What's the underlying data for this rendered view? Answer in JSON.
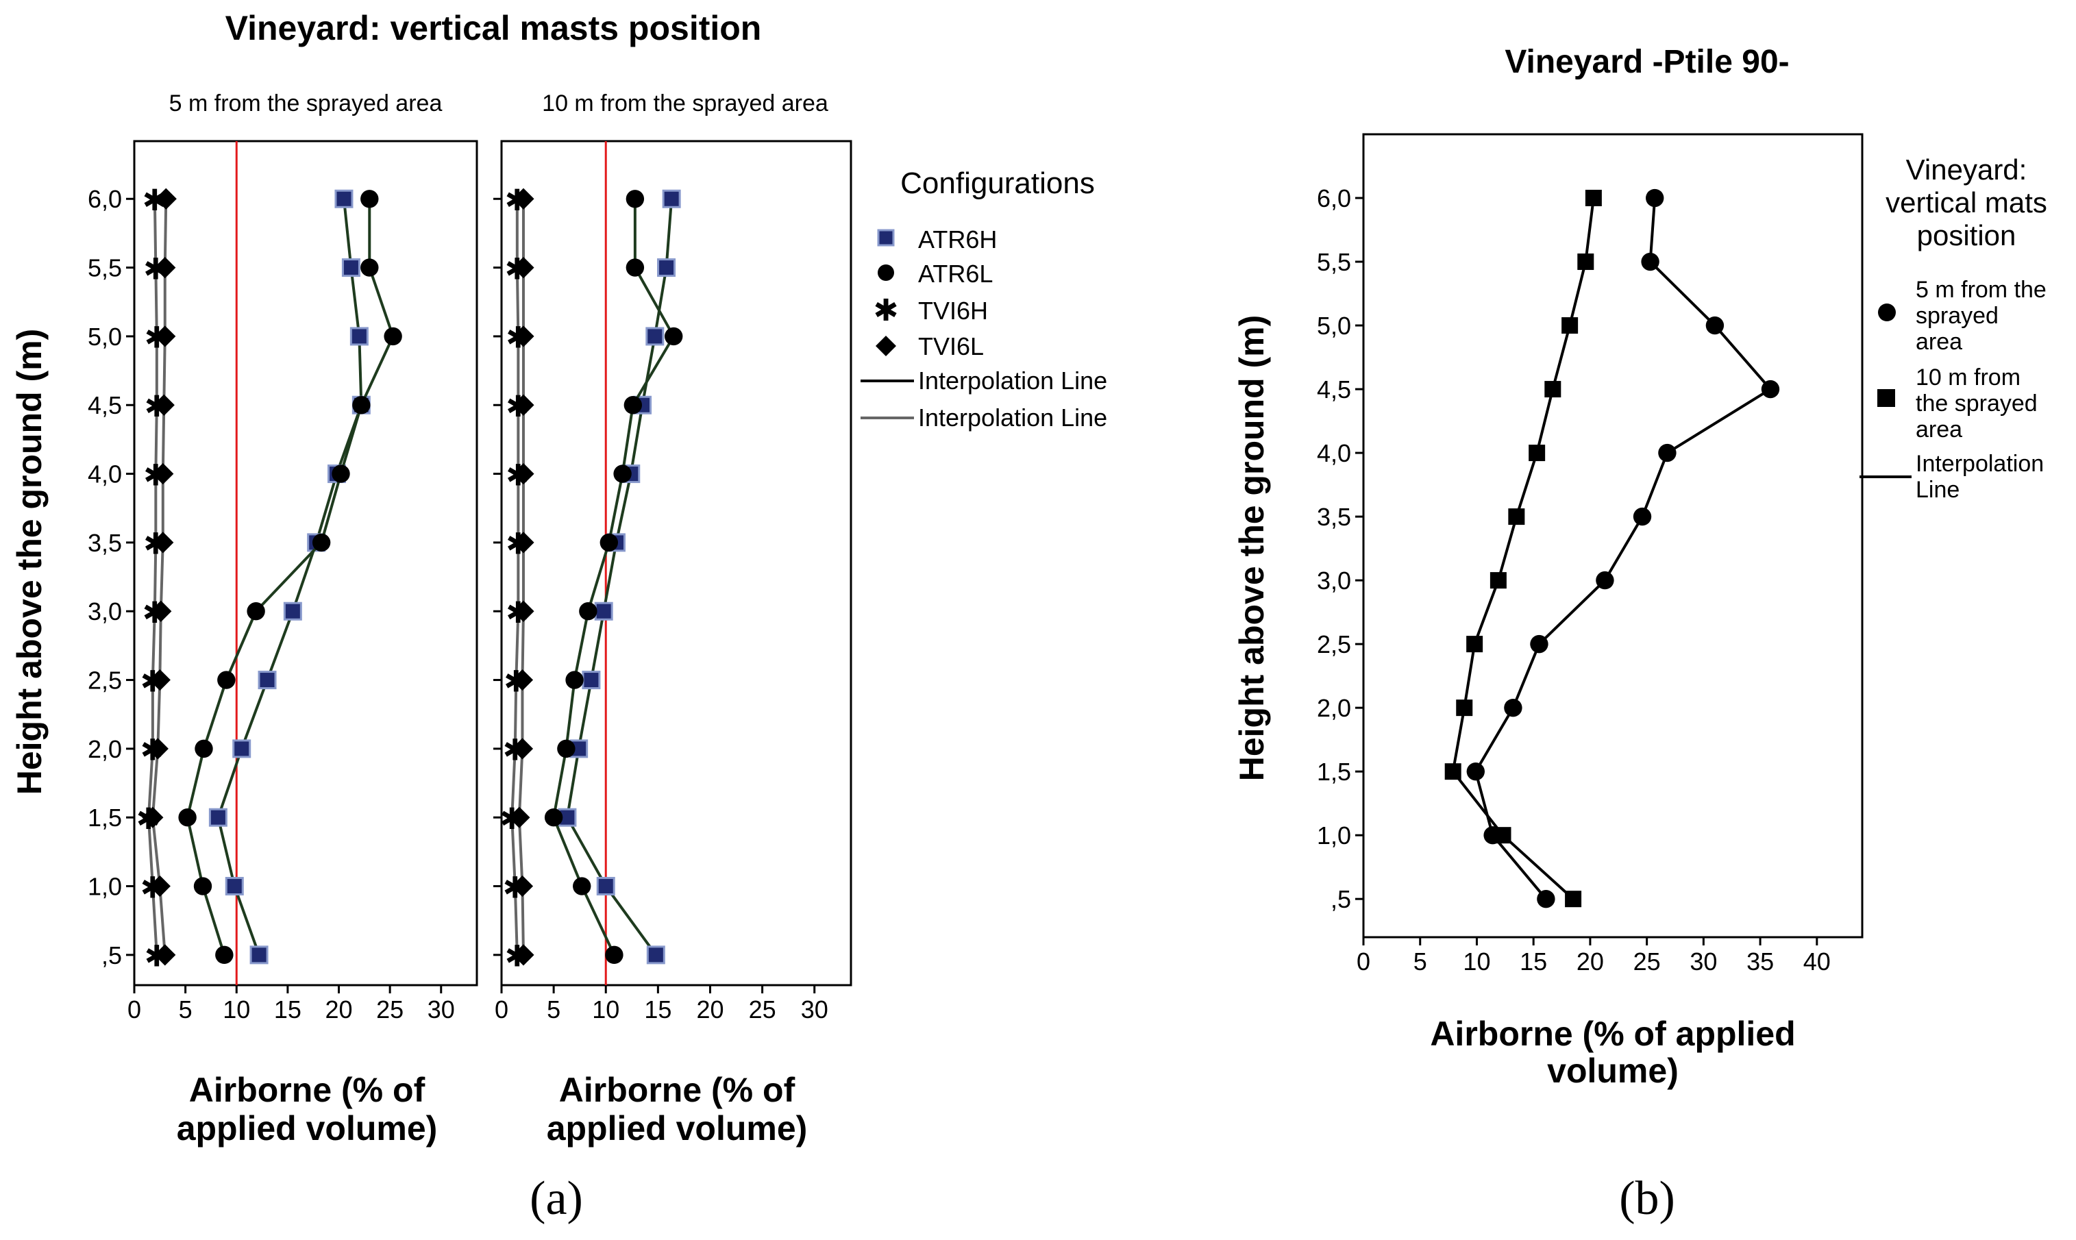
{
  "figure": {
    "panel_a_label": "(a)",
    "panel_b_label": "(b)"
  },
  "chart_data": [
    {
      "id": "a",
      "type": "line",
      "title": "Vineyard: vertical masts position",
      "ylabel": "Height above the ground (m)",
      "ytick_labels": [
        ",5",
        "1,0",
        "1,5",
        "2,0",
        "2,5",
        "3,0",
        "3,5",
        "4,0",
        "4,5",
        "5,0",
        "5,5",
        "6,0"
      ],
      "xticks": [
        0,
        5,
        10,
        15,
        20,
        25,
        30
      ],
      "xlim": [
        0,
        33.5
      ],
      "ylim": [
        0.28,
        6.42
      ],
      "grid": false,
      "legend_title": "Configurations",
      "legend_position": "right",
      "legend": [
        "ATR6H",
        "ATR6L",
        "TVI6H",
        "TVI6L",
        "Interpolation Line",
        "Interpolation Line"
      ],
      "reference_line": {
        "x": 10,
        "color": "#e31a1c"
      },
      "colors": {
        "ATR6H_fill": "#1f2a70",
        "ATR6H_edge": "#8899cc",
        "marker": "#000000",
        "line_dark": "#1e3b1e",
        "line_gray": "#666666"
      },
      "facets": [
        {
          "id": "a1",
          "label": "5 m from the sprayed area",
          "xlabel": [
            "Airborne (% of",
            "applied volume)"
          ],
          "y": [
            0.5,
            1.0,
            1.5,
            2.0,
            2.5,
            3.0,
            3.5,
            4.0,
            4.5,
            5.0,
            5.5,
            6.0
          ],
          "series": [
            {
              "name": "ATR6H",
              "marker": "square",
              "values": [
                12.2,
                9.8,
                8.2,
                10.5,
                13.0,
                15.5,
                17.8,
                19.8,
                22.2,
                22.0,
                21.2,
                20.5
              ]
            },
            {
              "name": "ATR6L",
              "marker": "circle",
              "values": [
                8.8,
                6.7,
                5.2,
                6.8,
                9.0,
                11.9,
                18.3,
                20.2,
                22.2,
                25.3,
                23.0,
                23.0
              ]
            },
            {
              "name": "TVI6H",
              "marker": "star",
              "values": [
                2.2,
                1.8,
                1.4,
                1.8,
                1.8,
                2.0,
                2.1,
                2.1,
                2.2,
                2.2,
                2.1,
                2.0
              ]
            },
            {
              "name": "TVI6L",
              "marker": "diamond",
              "values": [
                3.0,
                2.5,
                1.8,
                2.3,
                2.5,
                2.6,
                2.8,
                2.8,
                2.9,
                3.0,
                3.0,
                3.1
              ]
            }
          ]
        },
        {
          "id": "a2",
          "label": "10 m from the sprayed area",
          "xlabel": [
            "Airborne (% of",
            "applied volume)"
          ],
          "y": [
            0.5,
            1.0,
            1.5,
            2.0,
            2.5,
            3.0,
            3.5,
            4.0,
            4.5,
            5.0,
            5.5,
            6.0
          ],
          "series": [
            {
              "name": "ATR6H",
              "marker": "square",
              "values": [
                14.8,
                10.0,
                6.3,
                7.4,
                8.6,
                9.8,
                11.0,
                12.4,
                13.5,
                14.7,
                15.8,
                16.3
              ]
            },
            {
              "name": "ATR6L",
              "marker": "circle",
              "values": [
                10.8,
                7.7,
                5.0,
                6.2,
                7.0,
                8.3,
                10.3,
                11.6,
                12.6,
                16.5,
                12.8,
                12.8
              ]
            },
            {
              "name": "TVI6H",
              "marker": "star",
              "values": [
                1.5,
                1.3,
                1.0,
                1.3,
                1.4,
                1.6,
                1.6,
                1.6,
                1.6,
                1.6,
                1.5,
                1.5
              ]
            },
            {
              "name": "TVI6L",
              "marker": "diamond",
              "values": [
                2.1,
                2.0,
                1.7,
                2.0,
                2.0,
                2.1,
                2.1,
                2.1,
                2.1,
                2.1,
                2.1,
                2.1
              ]
            }
          ]
        }
      ]
    },
    {
      "id": "b",
      "type": "line",
      "title": "Vineyard -Ptile 90-",
      "xlabel": [
        "Airborne (% of applied",
        "volume)"
      ],
      "ylabel": "Height above the ground (m)",
      "ytick_labels": [
        ",5",
        "1,0",
        "1,5",
        "2,0",
        "2,5",
        "3,0",
        "3,5",
        "4,0",
        "4,5",
        "5,0",
        "5,5",
        "6,0"
      ],
      "xticks": [
        0,
        5,
        10,
        15,
        20,
        25,
        30,
        35,
        40
      ],
      "xlim": [
        0,
        44
      ],
      "ylim": [
        0.2,
        6.5
      ],
      "grid": false,
      "legend_title": [
        "Vineyard:",
        "vertical mats",
        "position"
      ],
      "legend_position": "right",
      "legend": [
        {
          "marker": "circle",
          "label": [
            "5 m from the",
            "sprayed",
            "area"
          ]
        },
        {
          "marker": "square",
          "label": [
            "10 m from",
            "the sprayed",
            "area"
          ]
        },
        {
          "marker": "line",
          "label": [
            "Interpolation",
            "Line"
          ]
        }
      ],
      "y": [
        0.5,
        1.0,
        1.5,
        2.0,
        2.5,
        3.0,
        3.5,
        4.0,
        4.5,
        5.0,
        5.5,
        6.0
      ],
      "series": [
        {
          "name": "5 m from the sprayed area",
          "marker": "circle",
          "values": [
            16.1,
            11.4,
            9.9,
            13.2,
            15.5,
            21.3,
            24.6,
            26.8,
            35.9,
            31.0,
            25.3,
            25.7
          ]
        },
        {
          "name": "10 m from the sprayed area",
          "marker": "square",
          "values": [
            18.5,
            12.3,
            7.9,
            8.9,
            9.8,
            11.9,
            13.5,
            15.3,
            16.7,
            18.2,
            19.6,
            20.3
          ]
        }
      ]
    }
  ]
}
